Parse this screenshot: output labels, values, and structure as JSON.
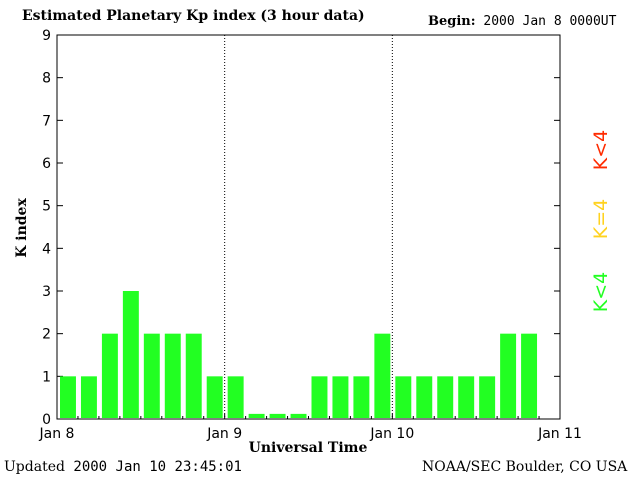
{
  "header": {
    "title": "Estimated Planetary Kp index (3 hour data)",
    "begin_label": "Begin:",
    "begin_value": "2000 Jan 8 0000UT"
  },
  "footer": {
    "updated_label": "Updated",
    "updated_value": "2000 Jan 10 23:45:01",
    "credit": "NOAA/SEC Boulder, CO USA"
  },
  "legend": {
    "items": [
      {
        "text": "K<4",
        "color": "#ff2b00"
      },
      {
        "text": "K=4",
        "color": "#ffd21f"
      },
      {
        "text": "K<4",
        "color": "#22ff22"
      }
    ]
  },
  "chart_data": {
    "type": "bar",
    "title": "Estimated Planetary Kp index (3 hour data)",
    "xlabel": "Universal Time",
    "ylabel": "K index",
    "ylim": [
      0,
      9
    ],
    "yticks": [
      0,
      1,
      2,
      3,
      4,
      5,
      6,
      7,
      8,
      9
    ],
    "xticks": [
      {
        "label": "Jan 8",
        "day": 0
      },
      {
        "label": "Jan 9",
        "day": 1
      },
      {
        "label": "Jan 10",
        "day": 2
      },
      {
        "label": "Jan 11",
        "day": 3
      }
    ],
    "day_dividers": [
      1,
      2
    ],
    "bar_color": "#22ff22",
    "bars_per_day": 8,
    "values": [
      1,
      1,
      2,
      3,
      2,
      2,
      2,
      1,
      1,
      0,
      0,
      0,
      1,
      1,
      1,
      2,
      1,
      1,
      1,
      1,
      1,
      2,
      2
    ]
  }
}
